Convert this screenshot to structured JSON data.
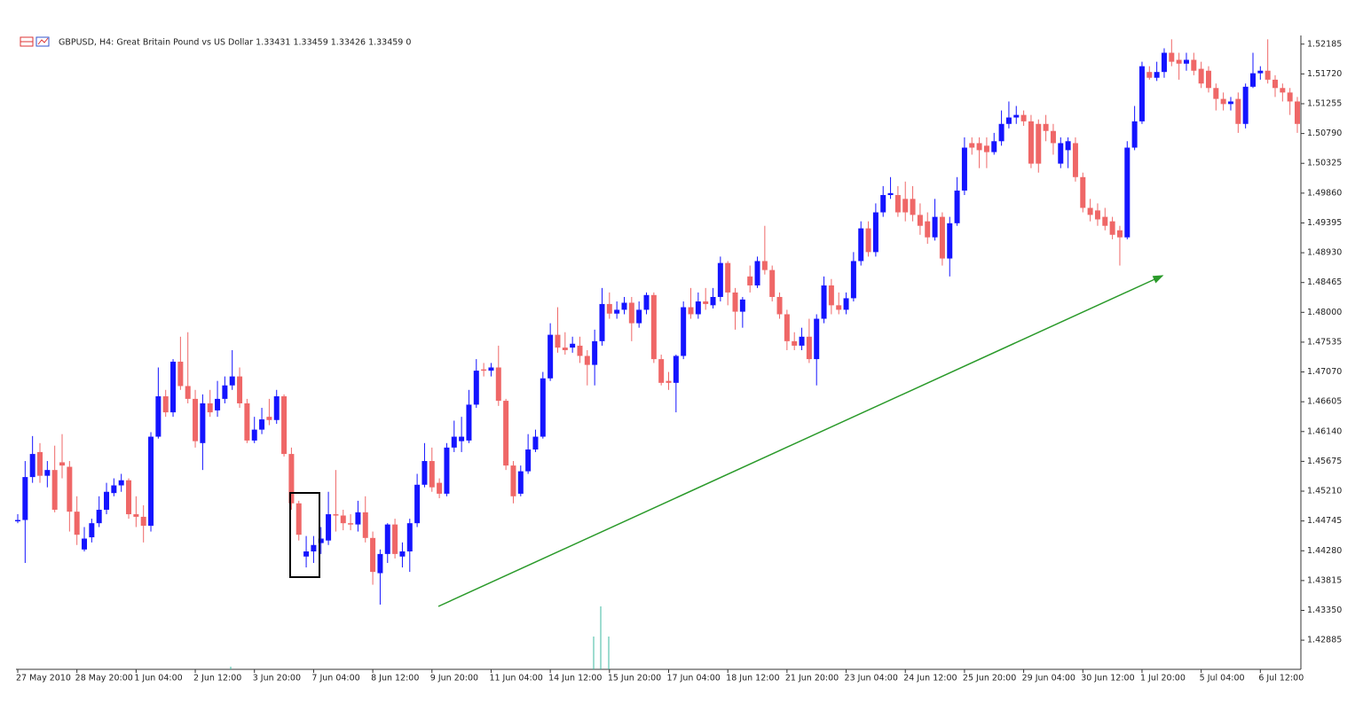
{
  "chart_data": {
    "type": "candlestick",
    "title": "GBPUSD, H4:  Great Britain Pound vs US Dollar  1.33431 1.33459 1.33426 1.33459  0",
    "up_color": "#1414ff",
    "down_color": "#ef6767",
    "ylim": [
      1.4243,
      1.5232
    ],
    "yticks": [
      1.52185,
      {
        "value": 1.5172,
        "label": "1.51720"
      },
      1.51255,
      {
        "value": 1.5079,
        "label": "1.50790"
      },
      1.50325,
      {
        "value": 1.4986,
        "label": "1.49860"
      },
      1.49395,
      {
        "value": 1.4893,
        "label": "1.48930"
      },
      1.48465,
      {
        "value": 1.48,
        "label": "1.48000"
      },
      1.47535,
      {
        "value": 1.4707,
        "label": "1.47070"
      },
      1.46605,
      {
        "value": 1.4614,
        "label": "1.46140"
      },
      1.45675,
      {
        "value": 1.4521,
        "label": "1.45210"
      },
      1.44745,
      {
        "value": 1.4428,
        "label": "1.44280"
      },
      1.43815,
      {
        "value": 1.4335,
        "label": "1.43350"
      },
      1.42885
    ],
    "categories": [
      "27 May 2010",
      null,
      null,
      null,
      null,
      null,
      null,
      null,
      "28 May 20:00",
      null,
      null,
      null,
      null,
      null,
      null,
      null,
      "1 Jun 04:00",
      null,
      null,
      null,
      null,
      null,
      null,
      null,
      "2 Jun 12:00",
      null,
      null,
      null,
      null,
      null,
      null,
      null,
      "3 Jun 20:00",
      null,
      null,
      null,
      null,
      null,
      null,
      null,
      "7 Jun 04:00",
      null,
      null,
      null,
      null,
      null,
      null,
      null,
      "8 Jun 12:00",
      null,
      null,
      null,
      null,
      null,
      null,
      null,
      "9 Jun 20:00",
      null,
      null,
      null,
      null,
      null,
      null,
      null,
      "11 Jun 04:00",
      null,
      null,
      null,
      null,
      null,
      null,
      null,
      "14 Jun 12:00",
      null,
      null,
      null,
      null,
      null,
      null,
      null,
      "15 Jun 20:00",
      null,
      null,
      null,
      null,
      null,
      null,
      null,
      "17 Jun 04:00",
      null,
      null,
      null,
      null,
      null,
      null,
      null,
      "18 Jun 12:00",
      null,
      null,
      null,
      null,
      null,
      null,
      null,
      "21 Jun 20:00",
      null,
      null,
      null,
      null,
      null,
      null,
      null,
      "23 Jun 04:00",
      null,
      null,
      null,
      null,
      null,
      null,
      null,
      "24 Jun 12:00",
      null,
      null,
      null,
      null,
      null,
      null,
      null,
      "25 Jun 20:00",
      null,
      null,
      null,
      null,
      null,
      null,
      null,
      "29 Jun 04:00",
      null,
      null,
      null,
      null,
      null,
      null,
      null,
      "30 Jun 12:00",
      null,
      null,
      null,
      null,
      null,
      null,
      null,
      "1 Jul 20:00",
      null,
      null,
      null,
      null,
      null,
      null,
      null,
      "5 Jul 04:00",
      null,
      null,
      null,
      null,
      null,
      null,
      null,
      "6 Jul 12:00",
      null,
      null,
      null,
      null,
      null
    ],
    "open": [
      1.4476,
      1.4476,
      1.4543,
      1.4582,
      1.4545,
      1.4554,
      1.4566,
      1.4559,
      1.4489,
      1.443,
      1.4449,
      1.4471,
      1.4492,
      1.4518,
      1.453,
      1.4538,
      1.4485,
      1.4481,
      1.4467,
      1.4606,
      1.4669,
      1.4644,
      1.4723,
      1.4685,
      1.4665,
      1.4596,
      1.4658,
      1.4647,
      1.4665,
      1.4686,
      1.47,
      1.4658,
      1.46,
      1.4617,
      1.4637,
      1.4632,
      1.4669,
      1.4579,
      1.4502,
      1.4419,
      1.4427,
      1.444,
      1.4444,
      1.4485,
      1.4483,
      1.4471,
      1.4469,
      1.4488,
      1.4448,
      1.4393,
      1.4423,
      1.4469,
      1.4419,
      1.4427,
      1.4471,
      1.4531,
      1.4568,
      1.4534,
      1.4517,
      1.4589,
      1.4599,
      1.46,
      1.4656,
      1.4711,
      1.4709,
      1.4714,
      1.4662,
      1.4561,
      1.4517,
      1.4552,
      1.4586,
      1.4606,
      1.4697,
      1.4765,
      1.4745,
      1.4745,
      1.4748,
      1.4732,
      1.4718,
      1.4755,
      1.4813,
      1.4798,
      1.4804,
      1.4815,
      1.4783,
      1.4804,
      1.4827,
      1.4727,
      1.4693,
      1.469,
      1.4732,
      1.4808,
      1.4797,
      1.4817,
      1.4811,
      1.4824,
      1.4877,
      1.4831,
      1.4801,
      1.4856,
      1.4842,
      1.488,
      1.4866,
      1.4824,
      1.4797,
      1.4755,
      1.4748,
      1.4762,
      1.4727,
      1.479,
      1.4842,
      1.4811,
      1.4804,
      1.4822,
      1.488,
      1.4931,
      1.4894,
      1.4956,
      1.4983,
      1.4983,
      1.4977,
      1.4977,
      1.4952,
      1.4942,
      1.4917,
      1.4949,
      1.4884,
      1.4939,
      1.499,
      1.5064,
      1.5064,
      1.506,
      1.505,
      1.5067,
      1.5094,
      1.5104,
      1.5108,
      1.5098,
      1.5094,
      1.5094,
      1.5083,
      1.5032,
      1.5053,
      1.5064,
      1.5011,
      1.4963,
      1.4959,
      1.4949,
      1.4942,
      1.4928,
      1.4917,
      1.5057,
      1.5098,
      1.5175,
      1.5166,
      1.5175,
      1.5205,
      1.5194,
      1.5188,
      1.5194,
      1.518,
      1.5177,
      1.515,
      1.5133,
      1.5125,
      1.5133,
      1.5094,
      1.5152,
      1.5173,
      1.5177,
      1.5163,
      1.515,
      1.5143,
      1.5129
    ],
    "high": [
      1.4485,
      1.4568,
      1.4607,
      1.4596,
      1.4568,
      1.4592,
      1.461,
      1.4568,
      1.4513,
      1.4465,
      1.4478,
      1.4513,
      1.4534,
      1.4541,
      1.4548,
      1.4541,
      1.4513,
      1.4499,
      1.4613,
      1.4714,
      1.4679,
      1.4727,
      1.4762,
      1.4769,
      1.4679,
      1.4672,
      1.4679,
      1.4693,
      1.47,
      1.4741,
      1.4714,
      1.4665,
      1.4637,
      1.4651,
      1.4665,
      1.4679,
      1.4672,
      1.4589,
      1.4506,
      1.4451,
      1.4451,
      1.4465,
      1.452,
      1.4554,
      1.4492,
      1.4485,
      1.4506,
      1.4513,
      1.4458,
      1.443,
      1.4471,
      1.4478,
      1.4441,
      1.4478,
      1.4548,
      1.4596,
      1.4589,
      1.4541,
      1.4596,
      1.4631,
      1.4637,
      1.4679,
      1.4727,
      1.4721,
      1.4721,
      1.4748,
      1.4665,
      1.4568,
      1.4561,
      1.461,
      1.4617,
      1.4707,
      1.4783,
      1.4808,
      1.4769,
      1.4762,
      1.4762,
      1.4741,
      1.4773,
      1.4838,
      1.4831,
      1.4817,
      1.4824,
      1.4824,
      1.4817,
      1.4831,
      1.4831,
      1.4734,
      1.4707,
      1.4734,
      1.4817,
      1.4838,
      1.4831,
      1.4838,
      1.4838,
      1.4887,
      1.488,
      1.4838,
      1.4824,
      1.4873,
      1.4887,
      1.4935,
      1.4873,
      1.4831,
      1.4804,
      1.4769,
      1.4776,
      1.479,
      1.4797,
      1.4856,
      1.4852,
      1.4831,
      1.4831,
      1.4894,
      1.4942,
      1.4942,
      1.497,
      1.4997,
      1.5011,
      1.4997,
      1.5004,
      1.4997,
      1.497,
      1.4956,
      1.4977,
      1.4956,
      1.4949,
      1.5011,
      1.5073,
      1.5073,
      1.5073,
      1.5073,
      1.508,
      1.5115,
      1.5129,
      1.5122,
      1.5115,
      1.5108,
      1.5101,
      1.5108,
      1.5094,
      1.5073,
      1.5073,
      1.5073,
      1.5018,
      1.4977,
      1.497,
      1.4963,
      1.4949,
      1.4935,
      1.5067,
      1.5122,
      1.5191,
      1.5184,
      1.5191,
      1.5212,
      1.5226,
      1.5205,
      1.5205,
      1.5205,
      1.5191,
      1.5184,
      1.5157,
      1.5143,
      1.5136,
      1.5143,
      1.5157,
      1.5205,
      1.5184,
      1.5226,
      1.517,
      1.5157,
      1.515,
      1.5136
    ],
    "low": [
      1.4471,
      1.4409,
      1.4534,
      1.4534,
      1.4527,
      1.4488,
      1.4541,
      1.4458,
      1.4437,
      1.4427,
      1.4441,
      1.4465,
      1.4485,
      1.4513,
      1.452,
      1.4478,
      1.4465,
      1.4441,
      1.4458,
      1.4603,
      1.4637,
      1.4637,
      1.4679,
      1.4658,
      1.4589,
      1.4554,
      1.4637,
      1.4637,
      1.4658,
      1.4679,
      1.4651,
      1.4596,
      1.4596,
      1.461,
      1.4624,
      1.4626,
      1.4575,
      1.4492,
      1.4444,
      1.4402,
      1.4409,
      1.4423,
      1.4437,
      1.4458,
      1.446,
      1.446,
      1.4458,
      1.4441,
      1.4375,
      1.4344,
      1.4409,
      1.4416,
      1.4402,
      1.4395,
      1.4465,
      1.4527,
      1.452,
      1.451,
      1.4513,
      1.4582,
      1.4582,
      1.4596,
      1.4651,
      1.47,
      1.47,
      1.4654,
      1.4554,
      1.4502,
      1.4513,
      1.4548,
      1.4582,
      1.4603,
      1.4693,
      1.4737,
      1.4734,
      1.4737,
      1.4721,
      1.4686,
      1.4686,
      1.4748,
      1.479,
      1.479,
      1.4797,
      1.4755,
      1.4776,
      1.4797,
      1.4721,
      1.4686,
      1.4679,
      1.4644,
      1.4727,
      1.479,
      1.479,
      1.4804,
      1.4806,
      1.4817,
      1.4811,
      1.4773,
      1.4776,
      1.4831,
      1.4838,
      1.4859,
      1.4817,
      1.479,
      1.4741,
      1.4741,
      1.4741,
      1.4721,
      1.4686,
      1.4783,
      1.4797,
      1.4797,
      1.4797,
      1.4817,
      1.4873,
      1.4887,
      1.4887,
      1.4949,
      1.4977,
      1.4949,
      1.4942,
      1.4942,
      1.4921,
      1.4907,
      1.4912,
      1.4873,
      1.4856,
      1.4935,
      1.4983,
      1.5046,
      1.5025,
      1.5025,
      1.5046,
      1.506,
      1.5087,
      1.5094,
      1.5091,
      1.5025,
      1.5018,
      1.5067,
      1.5046,
      1.5025,
      1.5025,
      1.5004,
      1.4956,
      1.4942,
      1.4935,
      1.4928,
      1.4914,
      1.4873,
      1.4914,
      1.5053,
      1.5094,
      1.5163,
      1.5161,
      1.5166,
      1.5184,
      1.5163,
      1.5177,
      1.517,
      1.515,
      1.5143,
      1.5115,
      1.5115,
      1.5115,
      1.508,
      1.5087,
      1.515,
      1.5163,
      1.5157,
      1.5136,
      1.5129,
      1.5108,
      1.508
    ],
    "close": [
      1.4476,
      1.4543,
      1.4579,
      1.4545,
      1.4554,
      1.4492,
      1.4561,
      1.4489,
      1.4453,
      1.4447,
      1.4471,
      1.4492,
      1.452,
      1.453,
      1.4538,
      1.4485,
      1.4481,
      1.4467,
      1.4606,
      1.4669,
      1.4644,
      1.4723,
      1.4685,
      1.4665,
      1.4599,
      1.4658,
      1.4644,
      1.4665,
      1.4686,
      1.47,
      1.4658,
      1.46,
      1.4617,
      1.4633,
      1.4632,
      1.4669,
      1.4579,
      1.4502,
      1.4453,
      1.4427,
      1.4437,
      1.4447,
      1.4485,
      1.4483,
      1.4471,
      1.4469,
      1.4488,
      1.4448,
      1.4395,
      1.4423,
      1.4469,
      1.4423,
      1.4427,
      1.4471,
      1.4531,
      1.4568,
      1.4527,
      1.4517,
      1.4589,
      1.4606,
      1.4606,
      1.4656,
      1.4709,
      1.4709,
      1.4714,
      1.4662,
      1.4561,
      1.4513,
      1.4552,
      1.4586,
      1.4606,
      1.4697,
      1.4765,
      1.4745,
      1.4741,
      1.4751,
      1.4732,
      1.4718,
      1.4755,
      1.4813,
      1.4798,
      1.4804,
      1.4815,
      1.4783,
      1.4804,
      1.4827,
      1.4727,
      1.469,
      1.469,
      1.4732,
      1.4808,
      1.4797,
      1.4817,
      1.4813,
      1.4824,
      1.4877,
      1.4831,
      1.4801,
      1.482,
      1.4842,
      1.488,
      1.4866,
      1.4824,
      1.4797,
      1.4755,
      1.4748,
      1.4762,
      1.4727,
      1.479,
      1.4842,
      1.4811,
      1.4804,
      1.4822,
      1.488,
      1.4931,
      1.4894,
      1.4956,
      1.4983,
      1.4986,
      1.4956,
      1.4956,
      1.4952,
      1.4935,
      1.4917,
      1.4949,
      1.4884,
      1.4939,
      1.499,
      1.5057,
      1.5057,
      1.5053,
      1.505,
      1.5067,
      1.5094,
      1.5104,
      1.5108,
      1.5098,
      1.5032,
      1.5032,
      1.5083,
      1.5064,
      1.5064,
      1.5067,
      1.5011,
      1.4963,
      1.4952,
      1.4945,
      1.4935,
      1.4921,
      1.4917,
      1.5057,
      1.5098,
      1.5184,
      1.5166,
      1.5175,
      1.5205,
      1.5191,
      1.5188,
      1.5194,
      1.5177,
      1.5157,
      1.515,
      1.5133,
      1.5125,
      1.5129,
      1.5094,
      1.5152,
      1.5173,
      1.5177,
      1.5163,
      1.515,
      1.5143,
      1.5129,
      1.5094
    ]
  }
}
